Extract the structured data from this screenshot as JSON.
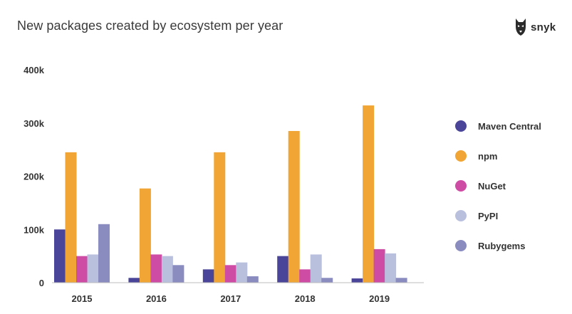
{
  "header": {
    "title": "New packages created by ecosystem per year",
    "logo_text": "snyk"
  },
  "chart_data": {
    "type": "bar",
    "title": "New packages created by ecosystem per year",
    "xlabel": "",
    "ylabel": "",
    "categories": [
      "2015",
      "2016",
      "2017",
      "2018",
      "2019"
    ],
    "ylim": [
      0,
      400000
    ],
    "yticks": [
      {
        "value": 0,
        "label": "0"
      },
      {
        "value": 100000,
        "label": "100k"
      },
      {
        "value": 200000,
        "label": "200k"
      },
      {
        "value": 300000,
        "label": "300k"
      },
      {
        "value": 400000,
        "label": "400k"
      }
    ],
    "grid": false,
    "legend_position": "right",
    "series": [
      {
        "name": "Maven Central",
        "color": "#4a4598",
        "values": [
          100000,
          9000,
          25000,
          50000,
          8000
        ]
      },
      {
        "name": "npm",
        "color": "#f0a534",
        "values": [
          245000,
          177000,
          245000,
          285000,
          333000
        ]
      },
      {
        "name": "NuGet",
        "color": "#cf4ca5",
        "values": [
          50000,
          53000,
          33000,
          25000,
          63000
        ]
      },
      {
        "name": "PyPI",
        "color": "#b9c0de",
        "values": [
          53000,
          50000,
          38000,
          53000,
          55000
        ]
      },
      {
        "name": "Rubygems",
        "color": "#8a8cc0",
        "values": [
          110000,
          33000,
          12000,
          9000,
          9000
        ]
      }
    ]
  }
}
